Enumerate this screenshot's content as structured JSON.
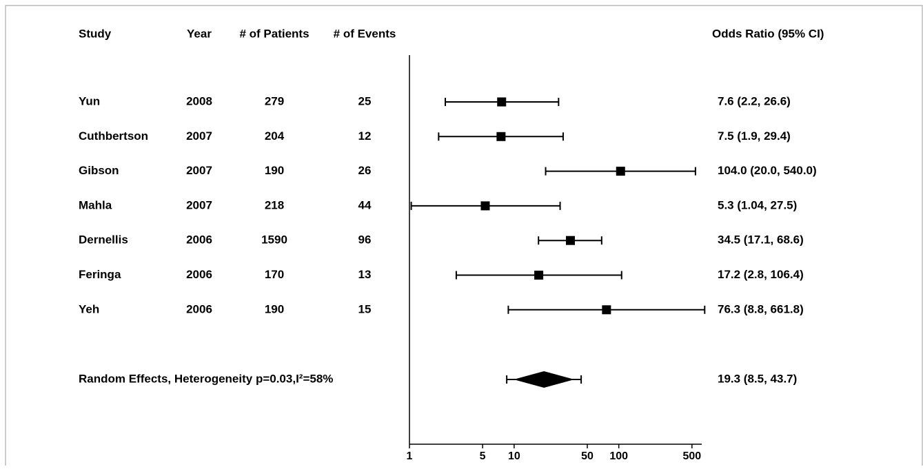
{
  "chart_data": {
    "type": "forest",
    "headers": [
      "Study",
      "Year",
      "# of Patients",
      "# of Events",
      "Odds Ratio (95% CI)"
    ],
    "categories": [
      "Yun",
      "Cuthbertson",
      "Gibson",
      "Mahla",
      "Dernellis",
      "Feringa",
      "Yeh"
    ],
    "years": [
      2008,
      2007,
      2007,
      2007,
      2006,
      2006,
      2006
    ],
    "patients": [
      279,
      204,
      190,
      218,
      1590,
      170,
      190
    ],
    "events": [
      25,
      12,
      26,
      44,
      96,
      13,
      15
    ],
    "values": [
      7.6,
      7.5,
      104.0,
      5.3,
      34.5,
      17.2,
      76.3
    ],
    "lower": [
      2.2,
      1.9,
      20.0,
      1.04,
      17.1,
      2.8,
      8.8
    ],
    "upper": [
      26.6,
      29.4,
      540.0,
      27.5,
      68.6,
      106.4,
      661.8
    ],
    "value_labels": [
      "7.6 (2.2, 26.6)",
      "7.5 (1.9, 29.4)",
      "104.0 (20.0, 540.0)",
      "5.3 (1.04, 27.5)",
      "34.5 (17.1, 68.6)",
      "17.2 (2.8, 106.4)",
      "76.3 (8.8, 661.8)"
    ],
    "summary": {
      "label": "Random Effects, Heterogeneity p=0.03,I²=58%",
      "value": 19.3,
      "lower": 8.5,
      "upper": 43.7,
      "value_label": "19.3 (8.5, 43.7)"
    },
    "color": "#000000",
    "log_scale": true,
    "xlim": [
      1,
      620
    ],
    "xticks": [
      1,
      5,
      10,
      50,
      100,
      500
    ]
  }
}
